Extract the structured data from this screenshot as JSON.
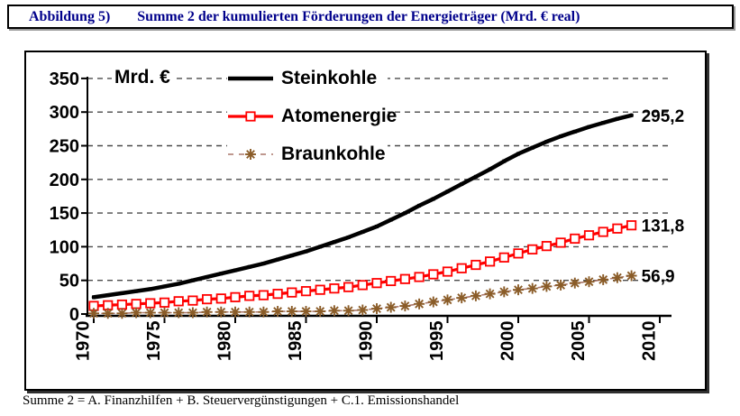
{
  "title_bar": {
    "label": "Abbildung 5)",
    "title": "Summe 2 der kumulierten Förderungen der Energieträger (Mrd. € real)"
  },
  "footer": {
    "text": "Summe 2 = A. Finanzhilfen + B. Steuervergünstigungen + C.1. Emissionshandel"
  },
  "colors": {
    "title_text": "#00008b",
    "grid": "#4a4a4a",
    "axis": "#000000"
  },
  "chart_data": {
    "type": "line",
    "unit_label": "Mrd. €",
    "xlabel": "",
    "ylabel": "Mrd. €",
    "ylim": [
      0,
      350
    ],
    "ytick_step": 50,
    "xticks": [
      1970,
      1975,
      1980,
      1985,
      1990,
      1995,
      2000,
      2005,
      2010
    ],
    "grid": "horizontal-dashed",
    "legend_position": "top-center",
    "x": [
      1970,
      1971,
      1972,
      1973,
      1974,
      1975,
      1976,
      1977,
      1978,
      1979,
      1980,
      1981,
      1982,
      1983,
      1984,
      1985,
      1986,
      1987,
      1988,
      1989,
      1990,
      1991,
      1992,
      1993,
      1994,
      1995,
      1996,
      1997,
      1998,
      1999,
      2000,
      2001,
      2002,
      2003,
      2004,
      2005,
      2006,
      2007,
      2008
    ],
    "series": [
      {
        "name": "Steinkohle",
        "color": "#000000",
        "line_style": "solid",
        "marker": "small-square",
        "end_label": "295,2",
        "values": [
          25,
          28,
          31,
          34,
          37,
          41,
          45,
          50,
          55,
          60,
          65,
          70,
          75,
          81,
          87,
          93,
          100,
          107,
          114,
          122,
          130,
          140,
          150,
          161,
          171,
          182,
          193,
          204,
          215,
          227,
          238,
          247,
          256,
          264,
          271,
          278,
          284,
          290,
          295.2
        ]
      },
      {
        "name": "Atomenergie",
        "color": "#ff0000",
        "marker_fill": "#ffffff",
        "line_style": "solid",
        "marker": "open-square",
        "end_label": "131,8",
        "values": [
          12,
          13,
          14,
          15,
          16,
          17,
          19,
          20,
          22,
          23,
          25,
          27,
          28,
          30,
          32,
          34,
          36,
          38,
          40,
          43,
          46,
          49,
          52,
          55,
          59,
          63,
          68,
          73,
          78,
          84,
          90,
          96,
          101,
          106,
          112,
          117,
          122,
          127,
          131.8
        ]
      },
      {
        "name": "Braunkohle",
        "color": "#aa766a",
        "marker_color": "#8a5c28",
        "line_style": "dashed",
        "marker": "asterisk",
        "end_label": "56,9",
        "values": [
          1,
          1,
          1,
          2,
          2,
          2,
          2,
          2,
          3,
          3,
          3,
          3,
          3,
          4,
          4,
          4,
          4,
          5,
          5,
          6,
          8,
          10,
          12,
          15,
          18,
          21,
          24,
          27,
          30,
          33,
          36,
          38,
          41,
          43,
          46,
          48,
          51,
          54,
          56.9
        ]
      }
    ]
  }
}
